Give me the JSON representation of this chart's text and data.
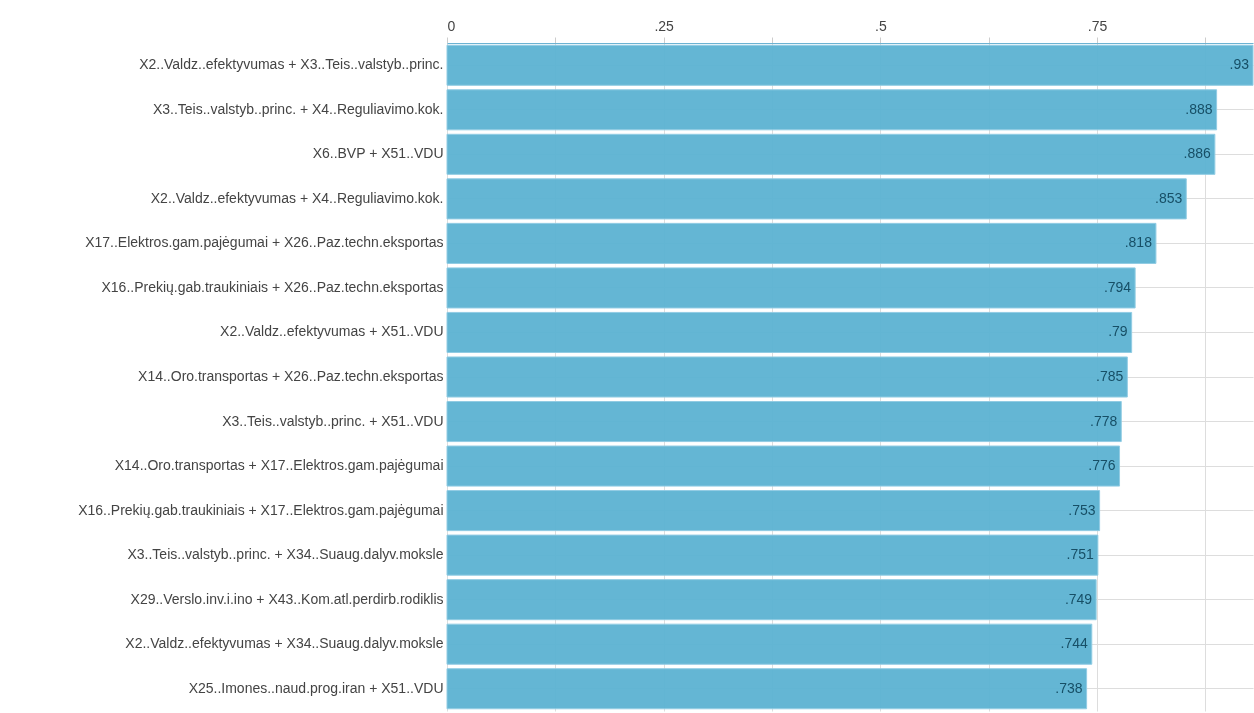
{
  "chart_data": {
    "type": "bar",
    "orientation": "horizontal",
    "color": "#5fb4d3",
    "categories": [
      "X2..Valdz..efektyvumas + X3..Teis..valstyb..princ.",
      "X3..Teis..valstyb..princ. + X4..Reguliavimo.kok.",
      "X6..BVP + X51..VDU",
      "X2..Valdz..efektyvumas + X4..Reguliavimo.kok.",
      "X17..Elektros.gam.pajėgumai + X26..Paz.techn.eksportas",
      "X16..Prekių.gab.traukiniais + X26..Paz.techn.eksportas",
      "X2..Valdz..efektyvumas + X51..VDU",
      "X14..Oro.transportas + X26..Paz.techn.eksportas",
      "X3..Teis..valstyb..princ. + X51..VDU",
      "X14..Oro.transportas + X17..Elektros.gam.pajėgumai",
      "X16..Prekių.gab.traukiniais + X17..Elektros.gam.pajėgumai",
      "X3..Teis..valstyb..princ. + X34..Suaug.dalyv.moksle",
      "X29..Verslo.inv.i.ino + X43..Kom.atl.perdirb.rodiklis",
      "X2..Valdz..efektyvumas + X34..Suaug.dalyv.moksle",
      "X25..Imones..naud.prog.iran + X51..VDU"
    ],
    "values": [
      0.93,
      0.888,
      0.886,
      0.853,
      0.818,
      0.794,
      0.79,
      0.785,
      0.778,
      0.776,
      0.753,
      0.751,
      0.749,
      0.744,
      0.738
    ],
    "value_labels": [
      ".93",
      ".888",
      ".886",
      ".853",
      ".818",
      ".794",
      ".79",
      ".785",
      ".778",
      ".776",
      ".753",
      ".751",
      ".749",
      ".744",
      ".738"
    ],
    "xlim": [
      0,
      0.93
    ],
    "xticks": [
      0,
      {
        "value": 0.125,
        "label": null
      },
      {
        "value": 0.25,
        "label": ".25"
      },
      {
        "value": 0.375,
        "label": null
      },
      {
        "value": 0.5,
        "label": ".5"
      },
      {
        "value": 0.625,
        "label": null
      },
      {
        "value": 0.75,
        "label": ".75"
      },
      {
        "value": 0.875,
        "label": null
      }
    ],
    "grid": true
  }
}
